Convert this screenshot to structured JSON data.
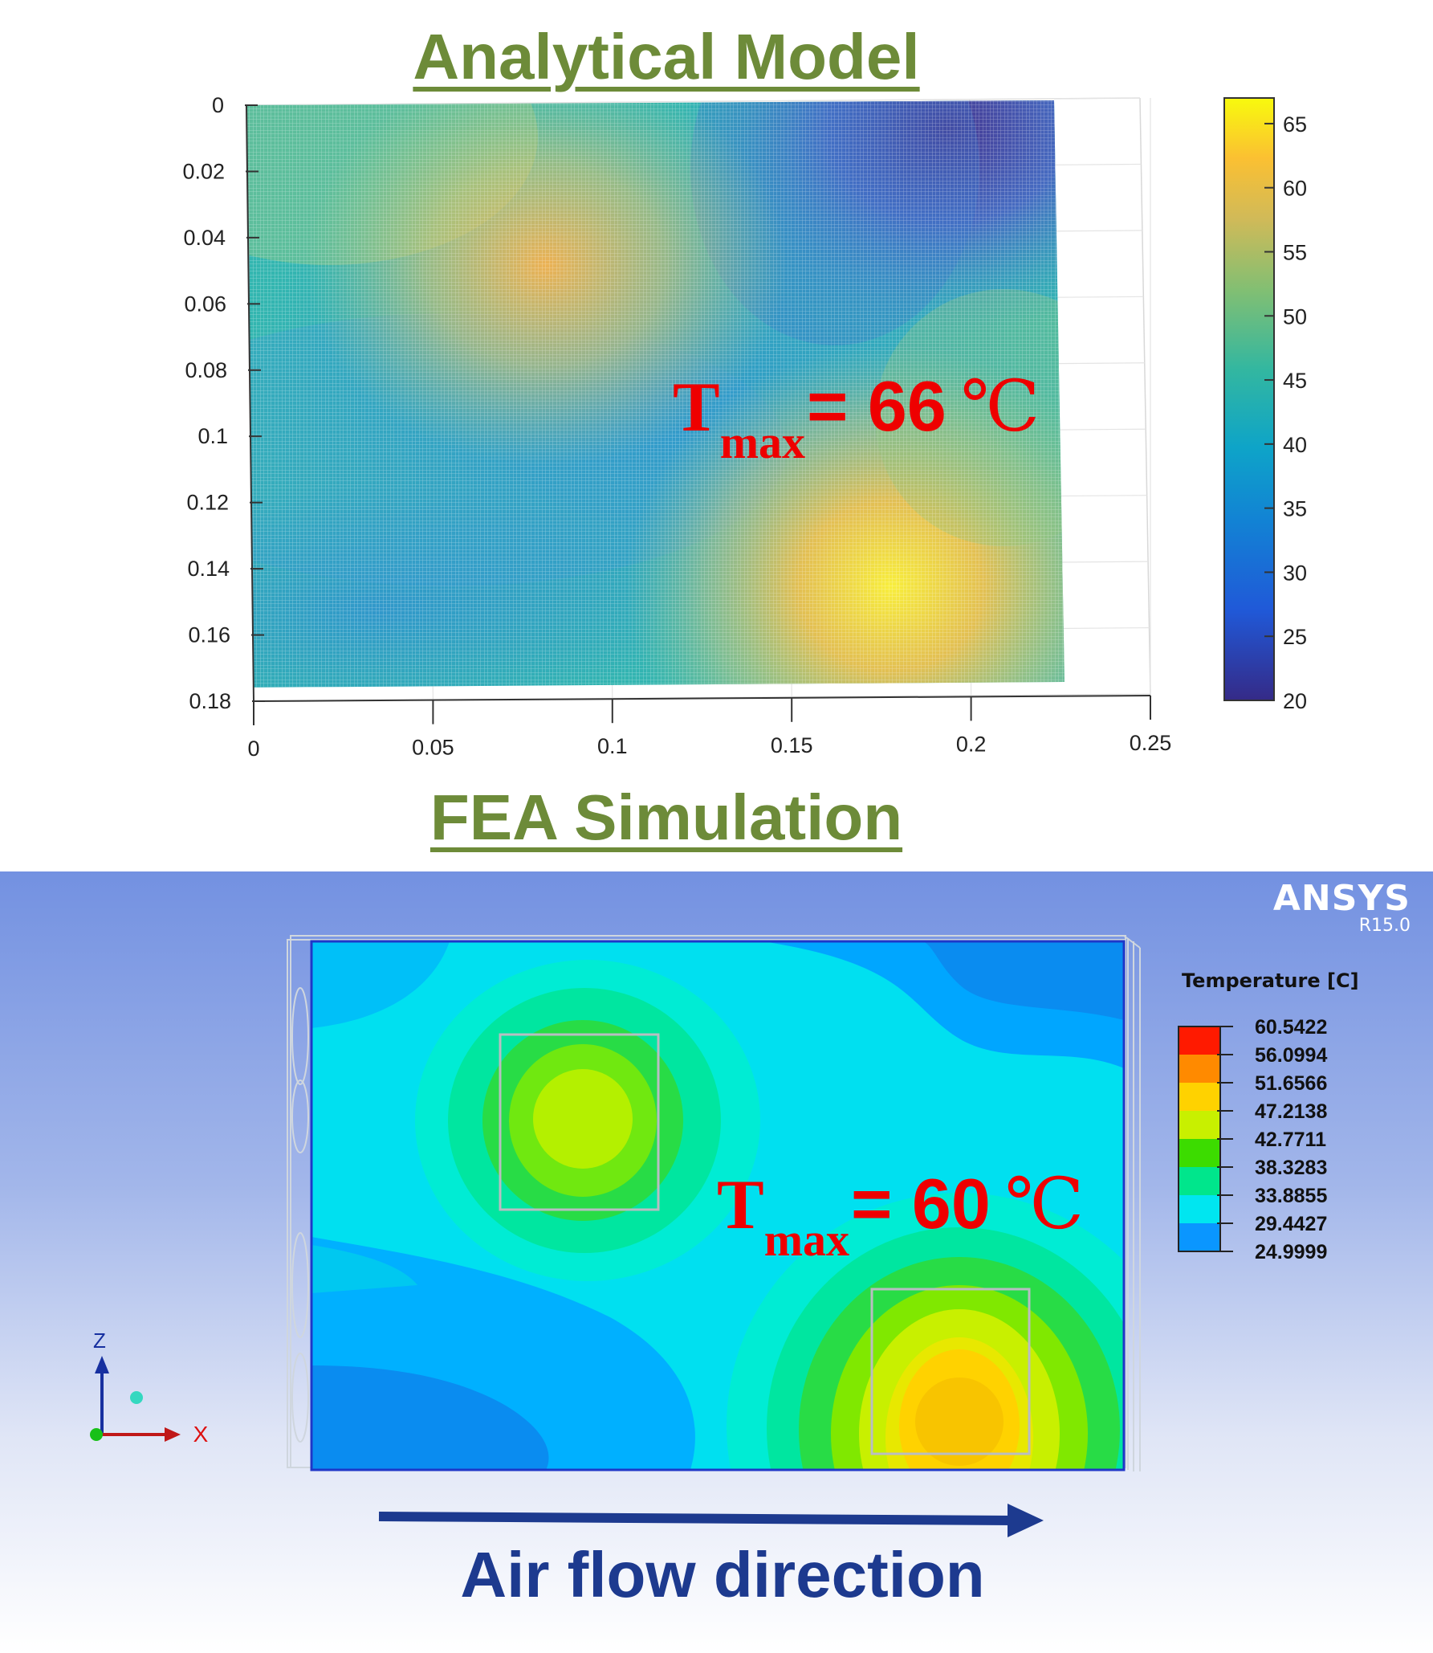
{
  "top_title": "Analytical Model",
  "mid_title": "FEA Simulation",
  "analytical": {
    "tmax_main": "T",
    "tmax_sub": "max",
    "tmax_value": "= 66",
    "tmax_unit": "℃"
  },
  "fea": {
    "tmax_main": "T",
    "tmax_sub": "max",
    "tmax_value": "= 60",
    "tmax_unit": "℃",
    "logo": "ANSYS",
    "version": "R15.0",
    "legend_title": "Temperature [C]",
    "legend_values": [
      "60.5422",
      "56.0994",
      "51.6566",
      "47.2138",
      "42.7711",
      "38.3283",
      "33.8855",
      "29.4427",
      "24.9999"
    ],
    "legend_colors": [
      "#ff1a00",
      "#ff8a00",
      "#ffd200",
      "#c8f000",
      "#3cdc00",
      "#00e68c",
      "#00e6f0",
      "#0a96ff",
      "#0014ff"
    ],
    "triad_z": "Z",
    "triad_x": "X"
  },
  "airflow_label": "Air flow direction",
  "chart_data": [
    {
      "type": "heatmap",
      "title": "Analytical Model",
      "x_ticks": [
        "0",
        "0.05",
        "0.1",
        "0.15",
        "0.2",
        "0.25"
      ],
      "y_ticks": [
        "0",
        "0.02",
        "0.04",
        "0.06",
        "0.08",
        "0.1",
        "0.12",
        "0.14",
        "0.16",
        "0.18"
      ],
      "xlim": [
        0,
        0.25
      ],
      "ylim": [
        0,
        0.18
      ],
      "y_reversed": true,
      "domain_x": [
        0,
        0.225
      ],
      "domain_y": [
        0,
        0.175
      ],
      "colorbar_ticks": [
        "20",
        "25",
        "30",
        "35",
        "40",
        "45",
        "50",
        "55",
        "60",
        "65"
      ],
      "colorbar_range": [
        20,
        67
      ],
      "hotspots": [
        {
          "x": 0.08,
          "y": 0.048,
          "peak_temp": 57
        },
        {
          "x": 0.18,
          "y": 0.145,
          "peak_temp": 66
        }
      ],
      "min_region": {
        "x": 0.2,
        "y": 0.01,
        "temp": 20
      }
    },
    {
      "type": "heatmap",
      "title": "FEA Simulation",
      "legend_title": "Temperature [C]",
      "levels": [
        24.9999,
        29.4427,
        33.8855,
        38.3283,
        42.7711,
        47.2138,
        51.6566,
        56.0994,
        60.5422
      ],
      "max_temp": 60
    }
  ]
}
